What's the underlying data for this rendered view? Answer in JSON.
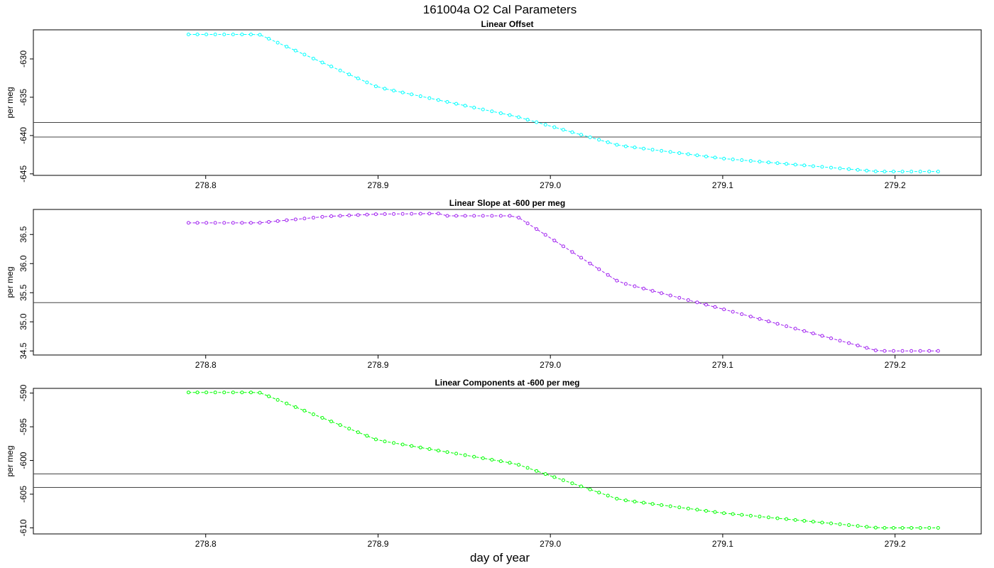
{
  "title": "161004a   O2 Cal Parameters",
  "xlabel": "day of year",
  "colors": {
    "offset": "#00ffff",
    "slope": "#a020f0",
    "components": "#00ff00",
    "frame": "#000000",
    "reference": "#444444"
  },
  "chart_data": [
    {
      "type": "line",
      "title": "Linear Offset",
      "ylabel": "per meg",
      "xlim": [
        278.7,
        279.25
      ],
      "ylim": [
        -645.2,
        -626.2
      ],
      "xticks": [
        278.8,
        278.9,
        279.0,
        279.1,
        279.2
      ],
      "xtick_labels": [
        "278.8",
        "278.9",
        "279.0",
        "279.1",
        "279.2"
      ],
      "yticks": [
        -630,
        -635,
        -640,
        -645
      ],
      "ytick_labels": [
        "-630",
        "-635",
        "-640",
        "-645"
      ],
      "hlines": [
        -638.3,
        -640.2
      ],
      "color_key": "offset",
      "keypoints": [
        [
          278.79,
          -626.8
        ],
        [
          278.831,
          -626.8
        ],
        [
          278.9,
          -633.7
        ],
        [
          278.98,
          -637.5
        ],
        [
          279.04,
          -641.3
        ],
        [
          279.1,
          -643.0
        ],
        [
          279.19,
          -644.7
        ],
        [
          279.225,
          -644.7
        ]
      ]
    },
    {
      "type": "line",
      "title": "Linear Slope at -600 per meg",
      "ylabel": "per meg",
      "xlim": [
        278.7,
        279.25
      ],
      "ylim": [
        34.43,
        36.93
      ],
      "xticks": [
        278.8,
        278.9,
        279.0,
        279.1,
        279.2
      ],
      "xtick_labels": [
        "278.8",
        "278.9",
        "279.0",
        "279.1",
        "279.2"
      ],
      "yticks": [
        34.5,
        35.0,
        35.5,
        36.0,
        36.5
      ],
      "ytick_labels": [
        "34.5",
        "35.0",
        "35.5",
        "36.0",
        "36.5"
      ],
      "hlines": [
        35.33
      ],
      "color_key": "slope",
      "keypoints": [
        [
          278.79,
          36.7
        ],
        [
          278.831,
          36.7
        ],
        [
          278.87,
          36.81
        ],
        [
          278.9,
          36.85
        ],
        [
          278.935,
          36.86
        ],
        [
          278.94,
          36.82
        ],
        [
          278.98,
          36.82
        ],
        [
          279.04,
          35.68
        ],
        [
          279.1,
          35.22
        ],
        [
          279.19,
          34.5
        ],
        [
          279.225,
          34.5
        ]
      ]
    },
    {
      "type": "line",
      "title": "Linear Components at -600 per meg",
      "ylabel": "per meg",
      "xlim": [
        278.7,
        279.25
      ],
      "ylim": [
        -610.9,
        -589.3
      ],
      "xticks": [
        278.8,
        278.9,
        279.0,
        279.1,
        279.2
      ],
      "xtick_labels": [
        "278.8",
        "278.9",
        "279.0",
        "279.1",
        "279.2"
      ],
      "yticks": [
        -590,
        -595,
        -600,
        -605,
        -610
      ],
      "ytick_labels": [
        "-590",
        "-595",
        "-600",
        "-605",
        "-610"
      ],
      "hlines": [
        -602.0,
        -604.0
      ],
      "color_key": "components",
      "keypoints": [
        [
          278.79,
          -589.9
        ],
        [
          278.831,
          -589.9
        ],
        [
          278.9,
          -597.0
        ],
        [
          278.98,
          -600.5
        ],
        [
          279.04,
          -605.8
        ],
        [
          279.1,
          -607.8
        ],
        [
          279.19,
          -610.0
        ],
        [
          279.225,
          -610.0
        ]
      ]
    }
  ]
}
